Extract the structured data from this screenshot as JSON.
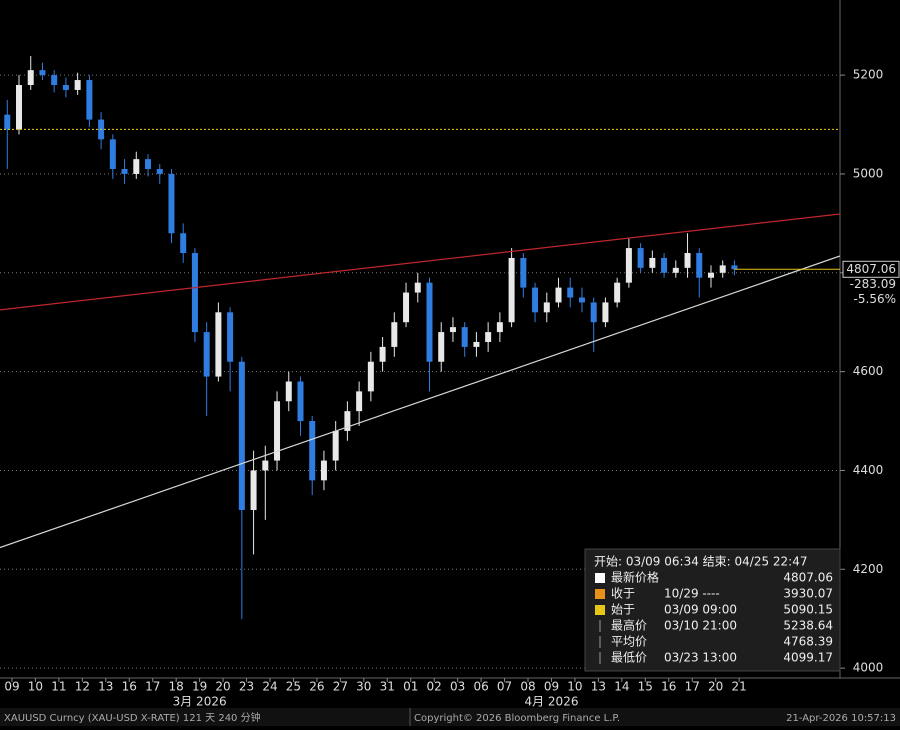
{
  "chart_data": {
    "type": "candlestick",
    "xlim": [
      -0.51,
      35.3
    ],
    "xticks": [
      {
        "value": 0,
        "label": "09"
      },
      {
        "value": 1,
        "label": "10"
      },
      {
        "value": 2,
        "label": "11"
      },
      {
        "value": 3,
        "label": "12"
      },
      {
        "value": 4,
        "label": "13"
      },
      {
        "value": 5,
        "label": "16"
      },
      {
        "value": 6,
        "label": "17"
      },
      {
        "value": 7,
        "label": "18"
      },
      {
        "value": 8,
        "label": "19"
      },
      {
        "value": 9,
        "label": "20"
      },
      {
        "value": 10,
        "label": "23"
      },
      {
        "value": 11,
        "label": "24"
      },
      {
        "value": 12,
        "label": "25"
      },
      {
        "value": 13,
        "label": "26"
      },
      {
        "value": 14,
        "label": "27"
      },
      {
        "value": 15,
        "label": "30"
      },
      {
        "value": 16,
        "label": "31"
      },
      {
        "value": 17,
        "label": "01"
      },
      {
        "value": 18,
        "label": "02"
      },
      {
        "value": 19,
        "label": "03"
      },
      {
        "value": 20,
        "label": "06"
      },
      {
        "value": 21,
        "label": "07"
      },
      {
        "value": 22,
        "label": "08"
      },
      {
        "value": 23,
        "label": "09"
      },
      {
        "value": 24,
        "label": "10"
      },
      {
        "value": 25,
        "label": "13"
      },
      {
        "value": 26,
        "label": "14"
      },
      {
        "value": 27,
        "label": "15"
      },
      {
        "value": 28,
        "label": "16"
      },
      {
        "value": 29,
        "label": "17"
      },
      {
        "value": 30,
        "label": "20"
      },
      {
        "value": 31,
        "label": "21"
      }
    ],
    "x_group_labels": [
      {
        "value": 8,
        "label": "3月 2026"
      },
      {
        "value": 23,
        "label": "4月 2026"
      }
    ],
    "ylim": [
      3980,
      5352
    ],
    "yticks": [
      4000,
      4200,
      4400,
      4600,
      4800,
      5000,
      5200
    ],
    "grid": true,
    "up_color": "#e8e8e8",
    "down_color": "#2f7de1",
    "x": [
      -0.2,
      0.3,
      0.8,
      1.3,
      1.8,
      2.3,
      2.8,
      3.3,
      3.8,
      4.3,
      4.8,
      5.3,
      5.8,
      6.3,
      6.8,
      7.3,
      7.8,
      8.3,
      8.8,
      9.3,
      9.8,
      10.3,
      10.8,
      11.3,
      11.8,
      12.3,
      12.8,
      13.3,
      13.8,
      14.3,
      14.8,
      15.3,
      15.8,
      16.3,
      16.8,
      17.3,
      17.8,
      18.3,
      18.8,
      19.3,
      19.8,
      20.3,
      20.8,
      21.3,
      21.8,
      22.3,
      22.8,
      23.3,
      23.8,
      24.3,
      24.8,
      25.3,
      25.8,
      26.3,
      26.8,
      27.3,
      27.8,
      28.3,
      28.8,
      29.3,
      29.8,
      30.3,
      30.8
    ],
    "open": [
      5120,
      5090,
      5180,
      5210,
      5200,
      5180,
      5170,
      5190,
      5110,
      5070,
      5010,
      5000,
      5030,
      5010,
      5000,
      4880,
      4840,
      4680,
      4590,
      4720,
      4620,
      4320,
      4400,
      4420,
      4540,
      4580,
      4500,
      4380,
      4420,
      4480,
      4520,
      4560,
      4620,
      4650,
      4700,
      4760,
      4780,
      4620,
      4680,
      4690,
      4650,
      4660,
      4680,
      4700,
      4830,
      4770,
      4720,
      4740,
      4770,
      4750,
      4740,
      4700,
      4740,
      4780,
      4850,
      4810,
      4830,
      4800,
      4810,
      4840,
      4790,
      4800,
      4815
    ],
    "high": [
      5150,
      5200,
      5238.64,
      5225,
      5210,
      5195,
      5205,
      5200,
      5125,
      5080,
      5030,
      5045,
      5040,
      5020,
      5010,
      4900,
      4850,
      4700,
      4740,
      4730,
      4630,
      4440,
      4450,
      4560,
      4600,
      4590,
      4510,
      4440,
      4500,
      4540,
      4580,
      4640,
      4670,
      4720,
      4780,
      4800,
      4790,
      4700,
      4710,
      4700,
      4680,
      4700,
      4720,
      4850,
      4840,
      4780,
      4760,
      4790,
      4790,
      4770,
      4750,
      4750,
      4790,
      4870,
      4860,
      4845,
      4840,
      4825,
      4880,
      4850,
      4815,
      4825,
      4825
    ],
    "low": [
      5010,
      5080,
      5170,
      5190,
      5165,
      5155,
      5160,
      5095,
      5050,
      4990,
      4980,
      4990,
      4995,
      4980,
      4860,
      4820,
      4660,
      4510,
      4580,
      4560,
      4099.17,
      4230,
      4300,
      4400,
      4520,
      4470,
      4350,
      4360,
      4400,
      4460,
      4490,
      4540,
      4600,
      4630,
      4690,
      4740,
      4560,
      4600,
      4660,
      4630,
      4630,
      4640,
      4660,
      4690,
      4750,
      4700,
      4700,
      4730,
      4730,
      4720,
      4640,
      4690,
      4730,
      4770,
      4800,
      4800,
      4790,
      4790,
      4790,
      4750,
      4770,
      4790,
      4795
    ],
    "close": [
      5090,
      5180,
      5210,
      5200,
      5180,
      5170,
      5190,
      5110,
      5070,
      5010,
      5000,
      5030,
      5010,
      5000,
      4880,
      4840,
      4680,
      4590,
      4720,
      4620,
      4320,
      4400,
      4420,
      4540,
      4580,
      4500,
      4380,
      4420,
      4480,
      4520,
      4560,
      4620,
      4650,
      4700,
      4760,
      4780,
      4620,
      4680,
      4690,
      4650,
      4660,
      4680,
      4700,
      4830,
      4770,
      4720,
      4740,
      4770,
      4750,
      4740,
      4700,
      4740,
      4780,
      4850,
      4810,
      4830,
      4800,
      4810,
      4840,
      4790,
      4800,
      4815,
      4807.06
    ],
    "trendlines": [
      {
        "color": "#c0262d",
        "x": [
          -0.51,
          35.3
        ],
        "y": [
          4725,
          4919
        ]
      },
      {
        "color": "#d8d8d8",
        "x": [
          -0.51,
          35.3
        ],
        "y": [
          4244,
          4834
        ]
      }
    ],
    "start_line": {
      "value": 5090.15,
      "color": "#f2d11a"
    },
    "last": {
      "value": 4807.06,
      "change": -283.09,
      "change_pct": {
        "value": -5.56,
        "label": "-5.56%"
      },
      "color": "#e6c619"
    },
    "legend": {
      "header": "开始: 03/09 06:34 结束: 04/25 22:47",
      "rows": [
        {
          "label": "最新价格",
          "date": "",
          "value": 4807.06
        },
        {
          "label": "收于",
          "date": "10/29 ----",
          "value": 3930.07
        },
        {
          "label": "始于",
          "date": "03/09 09:00",
          "value": 5090.15
        },
        {
          "label": "最高价",
          "date": "03/10 21:00",
          "value": 5238.64
        },
        {
          "label": "平均价",
          "date": "",
          "value": 4768.39
        },
        {
          "label": "最低价",
          "date": "03/23 13:00",
          "value": 4099.17
        }
      ]
    },
    "footer": {
      "security": "XAUUSD Curncy (XAU-USD X-RATE) 121 天 240 分钟",
      "copyright": "Copyright© 2026 Bloomberg Finance L.P.",
      "timestamp": "21-Apr-2026 10:57:13"
    }
  }
}
